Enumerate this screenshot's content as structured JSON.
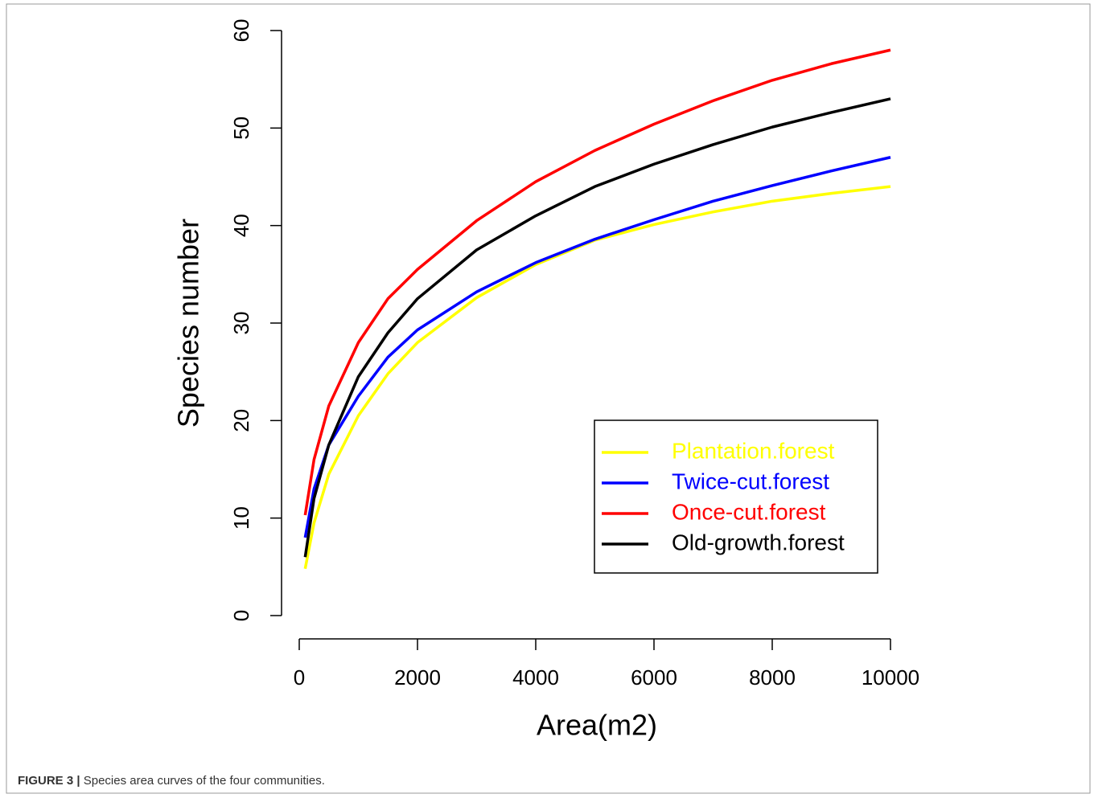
{
  "chart_data": {
    "type": "line",
    "x_label": "Area(m2)",
    "y_label": "Species number",
    "x": [
      100,
      250,
      500,
      1000,
      1500,
      2000,
      3000,
      4000,
      5000,
      6000,
      7000,
      8000,
      9000,
      10000
    ],
    "series": [
      {
        "name": "Plantation.forest",
        "color": "#ffff00",
        "values": [
          4.8,
          9.5,
          14.5,
          20.5,
          24.8,
          28,
          32.6,
          36,
          38.5,
          40.1,
          41.4,
          42.5,
          43.3,
          44
        ]
      },
      {
        "name": "Twice-cut.forest",
        "color": "#0000ff",
        "values": [
          8,
          13,
          17.5,
          22.5,
          26.5,
          29.3,
          33.2,
          36.2,
          38.6,
          40.6,
          42.5,
          44.1,
          45.6,
          47
        ]
      },
      {
        "name": "Once-cut.forest",
        "color": "#ff0000",
        "values": [
          10.3,
          16,
          21.5,
          28,
          32.5,
          35.5,
          40.5,
          44.5,
          47.7,
          50.4,
          52.8,
          54.9,
          56.6,
          58
        ]
      },
      {
        "name": "Old-growth.forest",
        "color": "#000000",
        "values": [
          6,
          12,
          17.5,
          24.5,
          29,
          32.5,
          37.5,
          41,
          44,
          46.3,
          48.3,
          50.1,
          51.6,
          53
        ]
      }
    ],
    "xlim": [
      0,
      10000
    ],
    "xticks": [
      0,
      2000,
      4000,
      6000,
      8000,
      10000
    ],
    "ylim": [
      0,
      60
    ],
    "yticks": [
      0,
      10,
      20,
      30,
      40,
      50,
      60
    ],
    "legend": "bottom-right"
  },
  "figure_caption": {
    "label": "FIGURE 3 |",
    "text": "Species area curves of the four communities."
  }
}
